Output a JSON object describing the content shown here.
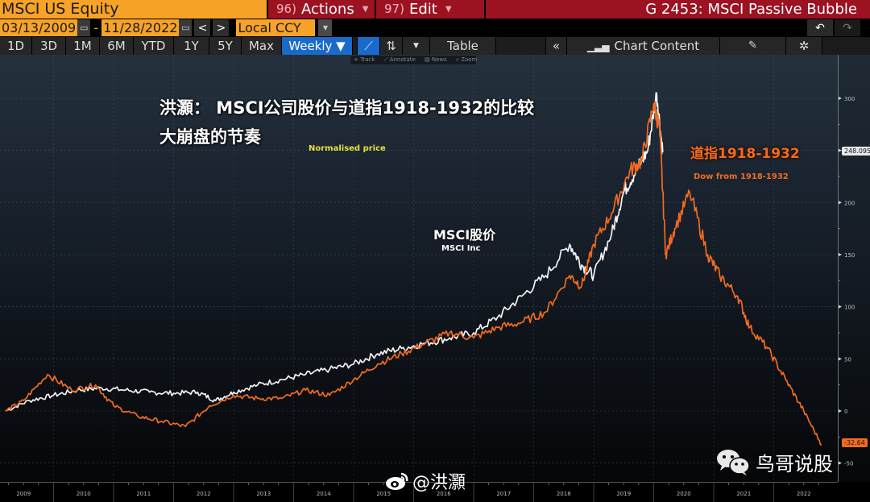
{
  "header": {
    "security": "MSCI US Equity",
    "actions": {
      "num": "96)",
      "label": "Actions"
    },
    "edit": {
      "num": "97)",
      "label": "Edit"
    },
    "title": "G 2453: MSCI Passive Bubble"
  },
  "range": {
    "start": "03/13/2009",
    "end": "11/28/2022",
    "currency": "Local CCY",
    "prev": "<",
    "next": ">"
  },
  "toolbar": {
    "periods": [
      "1D",
      "3D",
      "1M",
      "6M",
      "YTD",
      "1Y",
      "5Y",
      "Max"
    ],
    "frequency": "Weekly ▼",
    "table": "Table",
    "collapse": "«",
    "chart_content": "Chart Content",
    "hints": [
      "+ Track",
      "⟋ Annotate",
      "▤ News",
      "⌕ Zoom"
    ]
  },
  "annotations": {
    "title_line1": "洪灝：  MSCI公司股价与道指1918-1932的比较",
    "title_line2": "大崩盘的节奏",
    "normalised": "Normalised price",
    "dow_cn": "道指1918-1932",
    "dow_en": "Dow from 1918-1932",
    "msci_cn": "MSCI股价",
    "msci_en": "MSCI Inc",
    "last_msci": "248.095",
    "last_dow": "-32.64"
  },
  "watermarks": {
    "weibo": "@洪灝",
    "weixin": "鸟哥说股"
  },
  "colors": {
    "security_bg": "#f7a228",
    "menu_bg": "#9c1221",
    "active_blue": "#1a6acb",
    "msci_line": "#ffffff",
    "dow_line": "#f26b21",
    "normalised_label": "#e6e23a"
  },
  "chart_data": {
    "type": "line",
    "title": "MSCI Passive Bubble",
    "subtitle": "MSCI公司股价与道指1918-1932的比较 — 大崩盘的节奏",
    "ylabel": "Normalised price",
    "xlabel": "",
    "ylim": [
      -55,
      315
    ],
    "yticks": [
      -50,
      0,
      50,
      100,
      150,
      200,
      250,
      300
    ],
    "xticks": [
      "2009",
      "2010",
      "2011",
      "2012",
      "2013",
      "2014",
      "2015",
      "2016",
      "2017",
      "2018",
      "2019",
      "2020",
      "2021",
      "2022"
    ],
    "grid": true,
    "legend_position": "inline labels",
    "series": [
      {
        "name": "MSCI Inc",
        "color": "#ffffff",
        "x": [
          2009.2,
          2009.6,
          2010.0,
          2010.4,
          2010.8,
          2011.2,
          2011.6,
          2012.0,
          2012.4,
          2012.7,
          2013.0,
          2013.4,
          2013.8,
          2014.2,
          2014.6,
          2015.0,
          2015.4,
          2015.8,
          2016.2,
          2016.6,
          2017.0,
          2017.4,
          2017.8,
          2018.2,
          2018.6,
          2018.8,
          2019.0,
          2019.3,
          2019.5,
          2019.7,
          2019.9,
          2020.05,
          2020.15
        ],
        "values": [
          0,
          10,
          15,
          20,
          22,
          20,
          18,
          17,
          18,
          10,
          18,
          25,
          30,
          35,
          40,
          45,
          55,
          60,
          65,
          70,
          75,
          90,
          110,
          130,
          160,
          140,
          130,
          170,
          210,
          230,
          250,
          305,
          248.095
        ]
      },
      {
        "name": "Dow from 1918-1932",
        "color": "#f26b21",
        "x": [
          2009.2,
          2009.5,
          2009.9,
          2010.3,
          2010.7,
          2011.0,
          2011.4,
          2011.8,
          2012.2,
          2012.6,
          2013.0,
          2013.4,
          2013.8,
          2014.2,
          2014.6,
          2015.0,
          2015.4,
          2015.8,
          2016.2,
          2016.6,
          2017.0,
          2017.4,
          2017.8,
          2018.2,
          2018.6,
          2018.8,
          2019.0,
          2019.3,
          2019.6,
          2019.8,
          2020.0,
          2020.1,
          2020.2,
          2020.35,
          2020.6,
          2020.9,
          2021.1,
          2021.4,
          2021.6,
          2021.9,
          2022.2,
          2022.5,
          2022.8
        ],
        "values": [
          0,
          10,
          35,
          20,
          25,
          5,
          -5,
          -10,
          -15,
          5,
          15,
          12,
          12,
          20,
          15,
          30,
          45,
          55,
          65,
          75,
          70,
          80,
          85,
          95,
          130,
          120,
          160,
          190,
          230,
          240,
          295,
          270,
          150,
          175,
          210,
          150,
          130,
          110,
          80,
          60,
          30,
          0,
          -32.64
        ]
      }
    ]
  }
}
